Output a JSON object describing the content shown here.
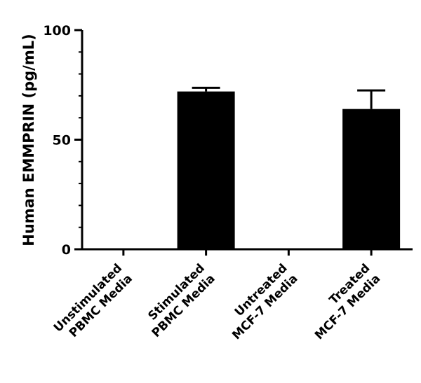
{
  "chart_data": {
    "type": "bar",
    "title": "",
    "xlabel": "",
    "ylabel": "Human EMMPRIN (pg/mL)",
    "ylim": [
      0,
      100
    ],
    "yticks": [
      0,
      50,
      100
    ],
    "categories": [
      [
        "Unstimulated",
        "PBMC Media"
      ],
      [
        "Stimulated",
        "PBMC Media"
      ],
      [
        "Untreated",
        "MCF-7 Media"
      ],
      [
        "Treated",
        "MCF-7 Media"
      ]
    ],
    "values": [
      0,
      72,
      0,
      64
    ],
    "errors": [
      0,
      1.7,
      0,
      8.5
    ],
    "bar_color": "#000000",
    "grid": false
  }
}
